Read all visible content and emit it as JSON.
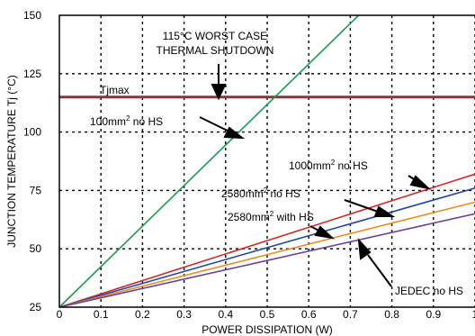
{
  "chart_data": {
    "type": "line",
    "xlabel": "POWER DISSIPATION (W)",
    "ylabel": "JUNCTION TEMPERATURE Tj (°C)",
    "xlim": [
      0,
      1.0
    ],
    "ylim": [
      25,
      150
    ],
    "x_ticks": [
      "0",
      "0.1",
      "0.2",
      "0.3",
      "0.4",
      "0.5",
      "0.6",
      "0.7",
      "0.8",
      "0.9",
      "1"
    ],
    "x_tick_values": [
      0,
      0.1,
      0.2,
      0.3,
      0.4,
      0.5,
      0.6,
      0.7,
      0.8,
      0.9,
      1.0
    ],
    "y_ticks": [
      "25",
      "50",
      "75",
      "100",
      "125",
      "150"
    ],
    "y_tick_values": [
      25,
      50,
      75,
      100,
      125,
      150
    ],
    "grid": "dotted",
    "tjmax": {
      "label": "Tjmax",
      "value": 115,
      "color": "#7a3b3b"
    },
    "series": [
      {
        "color": "#1a9b50",
        "x": [
          0,
          0.72
        ],
        "y": [
          25,
          150
        ]
      },
      {
        "color": "#d62a2a",
        "x": [
          0,
          1.0
        ],
        "y": [
          25,
          82
        ]
      },
      {
        "color": "#1f4aa8",
        "x": [
          0,
          1.0
        ],
        "y": [
          25,
          76
        ]
      },
      {
        "color": "#f08a1e",
        "x": [
          0,
          1.0
        ],
        "y": [
          25,
          70
        ]
      },
      {
        "color": "#6a3fa0",
        "x": [
          0,
          1.0
        ],
        "y": [
          25,
          65
        ]
      }
    ],
    "annotations": {
      "worst_case_line1": "115°C WORST CASE",
      "worst_case_line2": "THERMAL SHUTDOWN",
      "label_100": {
        "pre": "100mm",
        "sup": "2",
        "post": " no HS"
      },
      "label_1000": {
        "pre": "1000mm",
        "sup": "2",
        "post": " no HS"
      },
      "label_2580": {
        "pre": "2580mm",
        "sup": "2",
        "post": " no HS"
      },
      "label_2580hs": {
        "pre": "2580mm",
        "sup": "2",
        "post": " with HS"
      },
      "label_jedec": "JEDEC no HS"
    }
  }
}
